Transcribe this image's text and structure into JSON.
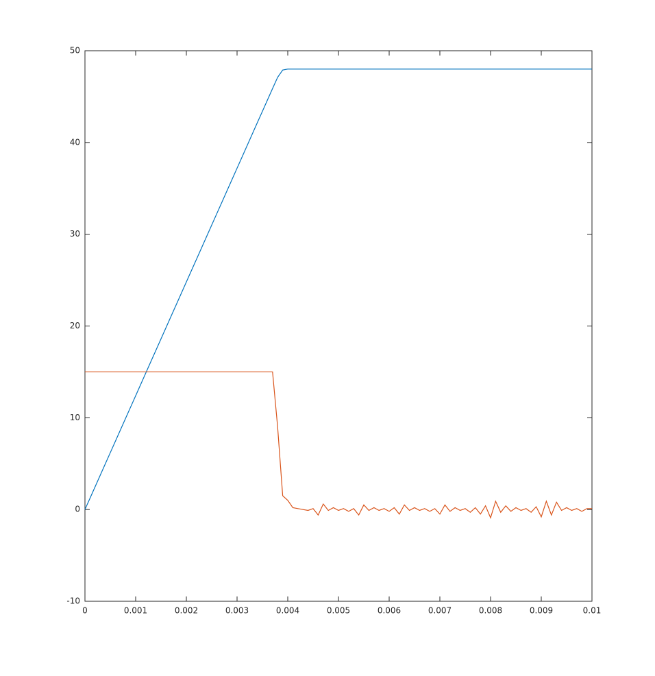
{
  "chart_data": {
    "type": "line",
    "x": [
      0,
      0.0001,
      0.0002,
      0.0003,
      0.0004,
      0.0005,
      0.0006,
      0.0007,
      0.0008,
      0.0009,
      0.001,
      0.0011,
      0.0012,
      0.0013,
      0.0014,
      0.0015,
      0.0016,
      0.0017,
      0.0018,
      0.0019,
      0.002,
      0.0021,
      0.0022,
      0.0023,
      0.0024,
      0.0025,
      0.0026,
      0.0027,
      0.0028,
      0.0029,
      0.003,
      0.0031,
      0.0032,
      0.0033,
      0.0034,
      0.0035,
      0.0036,
      0.0037,
      0.0038,
      0.0039,
      0.004,
      0.0041,
      0.0042,
      0.0043,
      0.0044,
      0.0045,
      0.0046,
      0.0047,
      0.0048,
      0.0049,
      0.005,
      0.0051,
      0.0052,
      0.0053,
      0.0054,
      0.0055,
      0.0056,
      0.0057,
      0.0058,
      0.0059,
      0.006,
      0.0061,
      0.0062,
      0.0063,
      0.0064,
      0.0065,
      0.0066,
      0.0067,
      0.0068,
      0.0069,
      0.007,
      0.0071,
      0.0072,
      0.0073,
      0.0074,
      0.0075,
      0.0076,
      0.0077,
      0.0078,
      0.0079,
      0.008,
      0.0081,
      0.0082,
      0.0083,
      0.0084,
      0.0085,
      0.0086,
      0.0087,
      0.0088,
      0.0089,
      0.009,
      0.0091,
      0.0092,
      0.0093,
      0.0094,
      0.0095,
      0.0096,
      0.0097,
      0.0098,
      0.0099,
      0.01
    ],
    "series": [
      {
        "color": "#0072bd",
        "values": [
          0,
          1.24,
          2.48,
          3.72,
          4.96,
          6.2,
          7.44,
          8.68,
          9.92,
          11.16,
          12.4,
          13.64,
          14.88,
          16.12,
          17.36,
          18.6,
          19.84,
          21.08,
          22.32,
          23.56,
          24.8,
          26.04,
          27.28,
          28.52,
          29.76,
          31,
          32.24,
          33.48,
          34.72,
          35.96,
          37.2,
          38.44,
          39.68,
          40.92,
          42.16,
          43.4,
          44.64,
          45.88,
          47.1,
          47.9,
          48,
          48,
          48,
          48,
          48,
          48,
          48,
          48,
          48,
          48,
          48,
          48,
          48,
          48,
          48,
          48,
          48,
          48,
          48,
          48,
          48,
          48,
          48,
          48,
          48,
          48,
          48,
          48,
          48,
          48,
          48,
          48,
          48,
          48,
          48,
          48,
          48,
          48,
          48,
          48,
          48,
          48,
          48,
          48,
          48,
          48,
          48,
          48,
          48,
          48,
          48,
          48,
          48,
          48,
          48,
          48,
          48,
          48,
          48,
          48,
          48
        ]
      },
      {
        "color": "#d95319",
        "values": [
          15,
          15,
          15,
          15,
          15,
          15,
          15,
          15,
          15,
          15,
          15,
          15,
          15,
          15,
          15,
          15,
          15,
          15,
          15,
          15,
          15,
          15,
          15,
          15,
          15,
          15,
          15,
          15,
          15,
          15,
          15,
          15,
          15,
          15,
          15,
          15,
          15,
          15,
          9,
          1.5,
          1,
          0.2,
          0.1,
          0,
          -0.1,
          0.1,
          -0.6,
          0.6,
          -0.1,
          0.2,
          -0.1,
          0.1,
          -0.2,
          0.1,
          -0.6,
          0.5,
          -0.1,
          0.2,
          -0.1,
          0.1,
          -0.2,
          0.2,
          -0.5,
          0.5,
          -0.1,
          0.2,
          -0.1,
          0.1,
          -0.2,
          0.1,
          -0.5,
          0.5,
          -0.2,
          0.2,
          -0.1,
          0.1,
          -0.3,
          0.2,
          -0.5,
          0.4,
          -0.9,
          0.9,
          -0.3,
          0.4,
          -0.2,
          0.2,
          -0.1,
          0.1,
          -0.3,
          0.3,
          -0.8,
          0.9,
          -0.6,
          0.8,
          -0.1,
          0.2,
          -0.1,
          0.1,
          -0.2,
          0.1,
          0.1
        ]
      }
    ],
    "xlim": [
      0,
      0.01
    ],
    "xticks": [
      0,
      0.001,
      0.002,
      0.003,
      0.004,
      0.005,
      0.006,
      0.007,
      0.008,
      0.009,
      0.01
    ],
    "ylim": [
      -10,
      50
    ],
    "yticks": [
      -10,
      0,
      10,
      20,
      30,
      40,
      50
    ]
  }
}
